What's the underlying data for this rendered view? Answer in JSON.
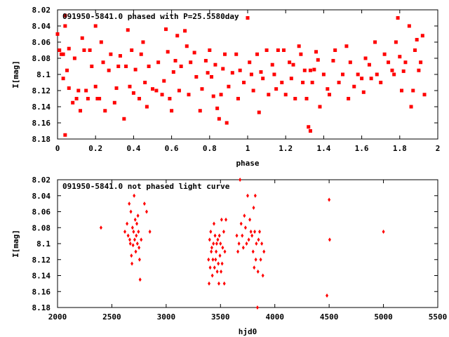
{
  "chart_data": [
    {
      "type": "scatter",
      "title": "091950-5841.0 phased with P=25.5580day",
      "xlabel": "phase",
      "ylabel": "I[mag]",
      "xlim": [
        0,
        2
      ],
      "ylim": [
        8.02,
        8.18
      ],
      "y_inverted": true,
      "xticks": [
        "0",
        "0.2",
        "0.4",
        "0.6",
        "0.8",
        "1",
        "1.2",
        "1.4",
        "1.6",
        "1.8",
        "2"
      ],
      "yticks": [
        "8.02",
        "8.04",
        "8.06",
        "8.08",
        "8.1",
        "8.12",
        "8.14",
        "8.16",
        "8.18"
      ],
      "marker_color": "#ff0000",
      "points": [
        [
          0.0,
          8.05
        ],
        [
          0.01,
          8.07
        ],
        [
          0.02,
          8.075
        ],
        [
          0.03,
          8.075
        ],
        [
          0.03,
          8.105
        ],
        [
          0.04,
          8.027
        ],
        [
          0.04,
          8.04
        ],
        [
          0.05,
          8.095
        ],
        [
          0.06,
          8.068
        ],
        [
          0.06,
          8.117
        ],
        [
          0.04,
          8.175
        ],
        [
          0.08,
          8.135
        ],
        [
          0.09,
          8.08
        ],
        [
          0.1,
          8.13
        ],
        [
          0.11,
          8.12
        ],
        [
          0.12,
          8.145
        ],
        [
          0.13,
          8.055
        ],
        [
          0.14,
          8.07
        ],
        [
          0.15,
          8.12
        ],
        [
          0.16,
          8.13
        ],
        [
          0.17,
          8.07
        ],
        [
          0.18,
          8.09
        ],
        [
          0.2,
          8.04
        ],
        [
          0.2,
          8.115
        ],
        [
          0.21,
          8.13
        ],
        [
          0.22,
          8.13
        ],
        [
          0.23,
          8.06
        ],
        [
          0.24,
          8.085
        ],
        [
          0.25,
          8.145
        ],
        [
          0.27,
          8.095
        ],
        [
          0.28,
          8.075
        ],
        [
          0.3,
          8.135
        ],
        [
          0.31,
          8.117
        ],
        [
          0.32,
          8.09
        ],
        [
          0.33,
          8.077
        ],
        [
          0.35,
          8.155
        ],
        [
          0.36,
          8.09
        ],
        [
          0.37,
          8.045
        ],
        [
          0.38,
          8.115
        ],
        [
          0.39,
          8.07
        ],
        [
          0.4,
          8.123
        ],
        [
          0.41,
          8.094
        ],
        [
          0.43,
          8.13
        ],
        [
          0.44,
          8.075
        ],
        [
          0.45,
          8.06
        ],
        [
          0.46,
          8.11
        ],
        [
          0.47,
          8.14
        ],
        [
          0.48,
          8.09
        ],
        [
          0.5,
          8.118
        ],
        [
          0.52,
          8.12
        ],
        [
          0.53,
          8.085
        ],
        [
          0.55,
          8.125
        ],
        [
          0.56,
          8.108
        ],
        [
          0.57,
          8.044
        ],
        [
          0.58,
          8.072
        ],
        [
          0.59,
          8.13
        ],
        [
          0.6,
          8.145
        ],
        [
          0.61,
          8.097
        ],
        [
          0.62,
          8.083
        ],
        [
          0.63,
          8.052
        ],
        [
          0.64,
          8.12
        ],
        [
          0.65,
          8.09
        ],
        [
          0.67,
          8.046
        ],
        [
          0.68,
          8.065
        ],
        [
          0.69,
          8.125
        ],
        [
          0.7,
          8.085
        ],
        [
          0.72,
          8.073
        ],
        [
          0.73,
          8.103
        ],
        [
          0.75,
          8.145
        ],
        [
          0.76,
          8.118
        ],
        [
          0.78,
          8.083
        ],
        [
          0.79,
          8.098
        ],
        [
          0.8,
          8.07
        ],
        [
          0.81,
          8.103
        ],
        [
          0.82,
          8.127
        ],
        [
          0.83,
          8.088
        ],
        [
          0.84,
          8.142
        ],
        [
          0.85,
          8.155
        ],
        [
          0.86,
          8.125
        ],
        [
          0.87,
          8.093
        ],
        [
          0.88,
          8.075
        ],
        [
          0.89,
          8.16
        ],
        [
          0.9,
          8.115
        ],
        [
          0.92,
          8.098
        ],
        [
          0.94,
          8.075
        ],
        [
          0.95,
          8.13
        ],
        [
          0.96,
          8.095
        ],
        [
          0.98,
          8.11
        ],
        [
          1.0,
          8.03
        ],
        [
          1.01,
          8.085
        ],
        [
          1.02,
          8.1
        ],
        [
          1.03,
          8.12
        ],
        [
          1.05,
          8.075
        ],
        [
          1.06,
          8.147
        ],
        [
          1.07,
          8.097
        ],
        [
          1.08,
          8.105
        ],
        [
          1.1,
          8.07
        ],
        [
          1.11,
          8.125
        ],
        [
          1.13,
          8.088
        ],
        [
          1.14,
          8.1
        ],
        [
          1.15,
          8.118
        ],
        [
          1.16,
          8.07
        ],
        [
          1.18,
          8.11
        ],
        [
          1.19,
          8.07
        ],
        [
          1.2,
          8.125
        ],
        [
          1.22,
          8.085
        ],
        [
          1.23,
          8.105
        ],
        [
          1.24,
          8.088
        ],
        [
          1.25,
          8.13
        ],
        [
          1.27,
          8.065
        ],
        [
          1.28,
          8.075
        ],
        [
          1.29,
          8.11
        ],
        [
          1.3,
          8.095
        ],
        [
          1.31,
          8.13
        ],
        [
          1.32,
          8.165
        ],
        [
          1.33,
          8.17
        ],
        [
          1.33,
          8.095
        ],
        [
          1.34,
          8.11
        ],
        [
          1.35,
          8.094
        ],
        [
          1.36,
          8.072
        ],
        [
          1.37,
          8.082
        ],
        [
          1.38,
          8.14
        ],
        [
          1.4,
          8.1
        ],
        [
          1.42,
          8.118
        ],
        [
          1.43,
          8.125
        ],
        [
          1.45,
          8.083
        ],
        [
          1.46,
          8.07
        ],
        [
          1.48,
          8.11
        ],
        [
          1.5,
          8.1
        ],
        [
          1.52,
          8.065
        ],
        [
          1.53,
          8.13
        ],
        [
          1.54,
          8.085
        ],
        [
          1.56,
          8.115
        ],
        [
          1.58,
          8.1
        ],
        [
          1.6,
          8.105
        ],
        [
          1.61,
          8.122
        ],
        [
          1.62,
          8.08
        ],
        [
          1.64,
          8.088
        ],
        [
          1.65,
          8.105
        ],
        [
          1.67,
          8.06
        ],
        [
          1.68,
          8.1
        ],
        [
          1.7,
          8.11
        ],
        [
          1.72,
          8.075
        ],
        [
          1.74,
          8.085
        ],
        [
          1.76,
          8.095
        ],
        [
          1.77,
          8.1
        ],
        [
          1.78,
          8.06
        ],
        [
          1.79,
          8.03
        ],
        [
          1.8,
          8.078
        ],
        [
          1.81,
          8.12
        ],
        [
          1.82,
          8.096
        ],
        [
          1.83,
          8.085
        ],
        [
          1.85,
          8.04
        ],
        [
          1.86,
          8.14
        ],
        [
          1.87,
          8.12
        ],
        [
          1.88,
          8.07
        ],
        [
          1.89,
          8.057
        ],
        [
          1.9,
          8.095
        ],
        [
          1.91,
          8.085
        ],
        [
          1.92,
          8.052
        ],
        [
          1.93,
          8.125
        ]
      ]
    },
    {
      "type": "scatter",
      "title": "091950-5841.0 not phased light curve",
      "xlabel": "hjd0",
      "ylabel": "I[mag]",
      "xlim": [
        2000,
        5500
      ],
      "ylim": [
        8.02,
        8.18
      ],
      "y_inverted": true,
      "xticks": [
        "2000",
        "2500",
        "3000",
        "3500",
        "4000",
        "4500",
        "5000",
        "5500"
      ],
      "yticks": [
        "8.02",
        "8.04",
        "8.06",
        "8.08",
        "8.1",
        "8.12",
        "8.14",
        "8.16",
        "8.18"
      ],
      "marker_color": "#ff0000",
      "points": [
        [
          2400,
          8.08
        ],
        [
          2620,
          8.085
        ],
        [
          2640,
          8.075
        ],
        [
          2650,
          8.09
        ],
        [
          2660,
          8.05
        ],
        [
          2665,
          8.095
        ],
        [
          2670,
          8.1
        ],
        [
          2675,
          8.06
        ],
        [
          2680,
          8.115
        ],
        [
          2685,
          8.125
        ],
        [
          2690,
          8.08
        ],
        [
          2695,
          8.102
        ],
        [
          2700,
          8.085
        ],
        [
          2705,
          8.04
        ],
        [
          2710,
          8.095
        ],
        [
          2715,
          8.07
        ],
        [
          2720,
          8.11
        ],
        [
          2725,
          8.09
        ],
        [
          2730,
          8.075
        ],
        [
          2735,
          8.1
        ],
        [
          2740,
          8.065
        ],
        [
          2745,
          8.085
        ],
        [
          2750,
          8.105
        ],
        [
          2755,
          8.12
        ],
        [
          2760,
          8.145
        ],
        [
          2770,
          8.095
        ],
        [
          2800,
          8.05
        ],
        [
          2820,
          8.06
        ],
        [
          2850,
          8.085
        ],
        [
          3390,
          8.12
        ],
        [
          3395,
          8.15
        ],
        [
          3400,
          8.095
        ],
        [
          3405,
          8.13
        ],
        [
          3410,
          8.085
        ],
        [
          3415,
          8.11
        ],
        [
          3420,
          8.105
        ],
        [
          3425,
          8.14
        ],
        [
          3430,
          8.12
        ],
        [
          3435,
          8.1
        ],
        [
          3440,
          8.075
        ],
        [
          3445,
          8.13
        ],
        [
          3450,
          8.09
        ],
        [
          3455,
          8.12
        ],
        [
          3460,
          8.11
        ],
        [
          3465,
          8.1
        ],
        [
          3470,
          8.135
        ],
        [
          3475,
          8.095
        ],
        [
          3480,
          8.125
        ],
        [
          3485,
          8.15
        ],
        [
          3490,
          8.09
        ],
        [
          3495,
          8.115
        ],
        [
          3500,
          8.1
        ],
        [
          3505,
          8.135
        ],
        [
          3510,
          8.07
        ],
        [
          3515,
          8.125
        ],
        [
          3520,
          8.105
        ],
        [
          3530,
          8.085
        ],
        [
          3535,
          8.15
        ],
        [
          3540,
          8.11
        ],
        [
          3550,
          8.07
        ],
        [
          3650,
          8.09
        ],
        [
          3660,
          8.11
        ],
        [
          3670,
          8.1
        ],
        [
          3680,
          8.02
        ],
        [
          3690,
          8.075
        ],
        [
          3700,
          8.09
        ],
        [
          3710,
          8.105
        ],
        [
          3720,
          8.065
        ],
        [
          3730,
          8.08
        ],
        [
          3740,
          8.1
        ],
        [
          3750,
          8.04
        ],
        [
          3760,
          8.095
        ],
        [
          3770,
          8.07
        ],
        [
          3780,
          8.085
        ],
        [
          3790,
          8.09
        ],
        [
          3800,
          8.11
        ],
        [
          3805,
          8.055
        ],
        [
          3810,
          8.13
        ],
        [
          3815,
          8.085
        ],
        [
          3820,
          8.04
        ],
        [
          3825,
          8.12
        ],
        [
          3830,
          8.1
        ],
        [
          3840,
          8.18
        ],
        [
          3845,
          8.135
        ],
        [
          3850,
          8.095
        ],
        [
          3860,
          8.085
        ],
        [
          3870,
          8.12
        ],
        [
          3880,
          8.1
        ],
        [
          3890,
          8.14
        ],
        [
          3900,
          8.11
        ],
        [
          4480,
          8.165
        ],
        [
          4500,
          8.045
        ],
        [
          4505,
          8.095
        ],
        [
          5000,
          8.085
        ]
      ]
    }
  ]
}
